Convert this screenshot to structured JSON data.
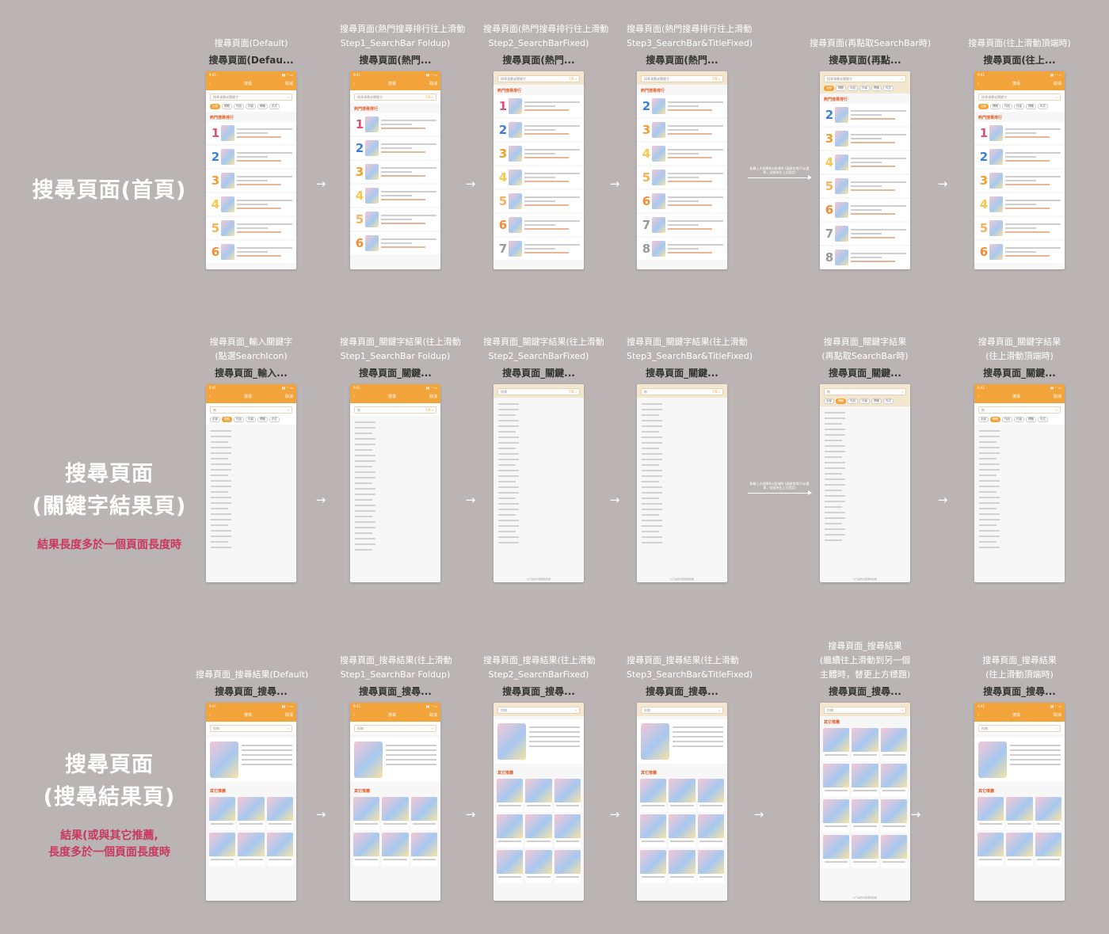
{
  "rows": [
    {
      "label_lines": [
        "搜尋頁面(首頁)"
      ],
      "note_lines": []
    },
    {
      "label_lines": [
        "搜尋頁面",
        "(關鍵字結果頁)"
      ],
      "note_lines": [
        "結果長度多於一個頁面長度時"
      ]
    },
    {
      "label_lines": [
        "搜尋頁面",
        "(搜尋結果頁)"
      ],
      "note_lines": [
        "結果(或與其它推薦,",
        "長度多於一個頁面長度時"
      ]
    }
  ],
  "row1": [
    {
      "caption": [
        "搜尋頁面(Default)"
      ],
      "frame": "搜尋頁面(Defau..."
    },
    {
      "caption": [
        "搜尋頁面(熱門搜尋排行往上滑動",
        "Step1_SearchBar Foldup)"
      ],
      "frame": "搜尋頁面(熱門..."
    },
    {
      "caption": [
        "搜尋頁面(熱門搜尋排行往上滑動",
        "Step2_SearchBarFixed)"
      ],
      "frame": "搜尋頁面(熱門..."
    },
    {
      "caption": [
        "搜尋頁面(熱門搜尋排行往上滑動",
        "Step3_SearchBar&TitleFixed)"
      ],
      "frame": "搜尋頁面(熱門..."
    },
    {
      "caption": [
        "搜尋頁面(再點取SearchBar時)"
      ],
      "frame": "搜尋頁面(再點..."
    },
    {
      "caption": [
        "搜尋頁面(往上滑動頂端時)"
      ],
      "frame": "搜尋頁面(往上..."
    }
  ],
  "row2": [
    {
      "caption": [
        "搜尋頁面_輸入關鍵字",
        "(點選SearchIcon)"
      ],
      "frame": "搜尋頁面_輸入..."
    },
    {
      "caption": [
        "搜尋頁面_關鍵字結果(往上滑動",
        "Step1_SearchBar Foldup)"
      ],
      "frame": "搜尋頁面_關鍵..."
    },
    {
      "caption": [
        "搜尋頁面_關鍵字結果(往上滑動",
        "Step2_SearchBarFixed)"
      ],
      "frame": "搜尋頁面_關鍵..."
    },
    {
      "caption": [
        "搜尋頁面_關鍵字結果(往上滑動",
        "Step3_SearchBar&TitleFixed)"
      ],
      "frame": "搜尋頁面_關鍵..."
    },
    {
      "caption": [
        "搜尋頁面_關鍵字結果",
        "(再點取SearchBar時)"
      ],
      "frame": "搜尋頁面_關鍵..."
    },
    {
      "caption": [
        "搜尋頁面_關鍵字結果",
        "(往上滑動頂端時)"
      ],
      "frame": "搜尋頁面_關鍵..."
    }
  ],
  "row3": [
    {
      "caption": [
        "搜尋頁面_搜尋結果(Default)"
      ],
      "frame": "搜尋頁面_搜尋..."
    },
    {
      "caption": [
        "搜尋頁面_搜尋結果(往上滑動",
        "Step1_SearchBar Foldup)"
      ],
      "frame": "搜尋頁面_搜尋..."
    },
    {
      "caption": [
        "搜尋頁面_搜尋結果(往上滑動",
        "Step2_SearchBarFixed)"
      ],
      "frame": "搜尋頁面_搜尋..."
    },
    {
      "caption": [
        "搜尋頁面_搜尋結果(往上滑動",
        "Step3_SearchBar&TitleFixed)"
      ],
      "frame": "搜尋頁面_搜尋..."
    },
    {
      "caption": [
        "搜尋頁面_搜尋結果",
        "(繼續往上滑動到另一個",
        "主體時，替更上方標題)"
      ],
      "frame": "搜尋頁面_搜尋..."
    },
    {
      "caption": [
        "搜尋頁面_搜尋結果",
        "(往上滑動頂端時)"
      ],
      "frame": "搜尋頁面_搜尋..."
    }
  ],
  "phone_ui": {
    "time": "9:41",
    "signal": "▮▮ ◠ ▭",
    "back": "‹",
    "title": "搜尋",
    "action": "取消",
    "placeholder": "搜尋漫畫或關鍵字",
    "query_keyword": "無",
    "query_recent": "搜尋",
    "query_result": "投稿",
    "query_keyword_tag": "7/8",
    "chips": [
      "全部",
      "標題",
      "作品",
      "作者",
      "標籤",
      "內文"
    ],
    "hot_title": "熱門搜尋排行",
    "other_title": "其它推薦",
    "foot": "以下是搜尋結果的篇章",
    "mid_note": "點擊上方搜尋Bar區域時 (展開並帶Chip選單，但維持在上方固定)"
  },
  "colors": {
    "brand": "#f2a43a",
    "rank": [
      "#e84d7a",
      "#3b7fd6",
      "#f29e2e",
      "#f7c84a",
      "#f7b15c",
      "#f28d33",
      "#999999",
      "#999999"
    ]
  }
}
